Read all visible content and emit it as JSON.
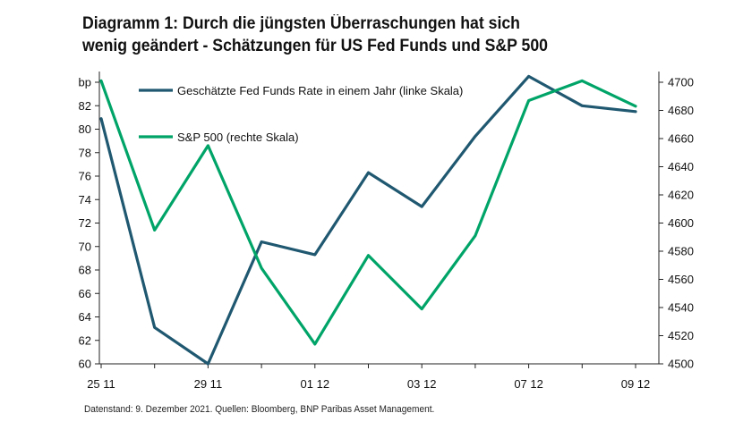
{
  "title_line1": "Diagramm 1: Durch die jüngsten Überraschungen hat sich",
  "title_line2": "wenig geändert - Schätzungen für US Fed Funds und S&P 500",
  "footnote": "Datenstand: 9. Dezember 2021.  Quellen: Bloomberg, BNP Paribas Asset Management.",
  "colors": {
    "fed": "#1f5870",
    "sp": "#00a468",
    "axis": "#222222"
  },
  "chart_data": {
    "type": "line",
    "title": "Diagramm 1: Durch die jüngsten Überraschungen hat sich wenig geändert - Schätzungen für US Fed Funds und S&P 500",
    "x_index": [
      0,
      1,
      2,
      3,
      4,
      5,
      6,
      7,
      8,
      9,
      10
    ],
    "x_tick_positions": [
      0,
      2,
      4,
      6,
      8,
      10
    ],
    "x_tick_labels": [
      "25 11",
      "29 11",
      "01 12",
      "03 12",
      "07 12",
      "09 12"
    ],
    "left_axis": {
      "unit_label": "bp",
      "ylim": [
        60,
        84
      ],
      "ticks": [
        60,
        62,
        64,
        66,
        68,
        70,
        72,
        74,
        76,
        78,
        80,
        82
      ]
    },
    "right_axis": {
      "ylim": [
        4500,
        4700
      ],
      "ticks": [
        4500,
        4520,
        4540,
        4560,
        4580,
        4600,
        4620,
        4640,
        4660,
        4680,
        4700
      ]
    },
    "series": [
      {
        "name": "Geschätzte Fed Funds Rate in einem Jahr (linke Skala)",
        "axis": "left",
        "color_key": "fed",
        "values": [
          80.9,
          63.1,
          60.0,
          70.4,
          69.3,
          76.3,
          73.4,
          79.4,
          84.5,
          82.0,
          81.5
        ]
      },
      {
        "name": "S&P 500 (rechte Skala)",
        "axis": "right",
        "color_key": "sp",
        "values": [
          4701,
          4595,
          4655,
          4568,
          4514,
          4577,
          4539,
          4591,
          4687,
          4701,
          4683
        ]
      }
    ],
    "grid": false,
    "legend_placement": "top-center inside plot"
  }
}
